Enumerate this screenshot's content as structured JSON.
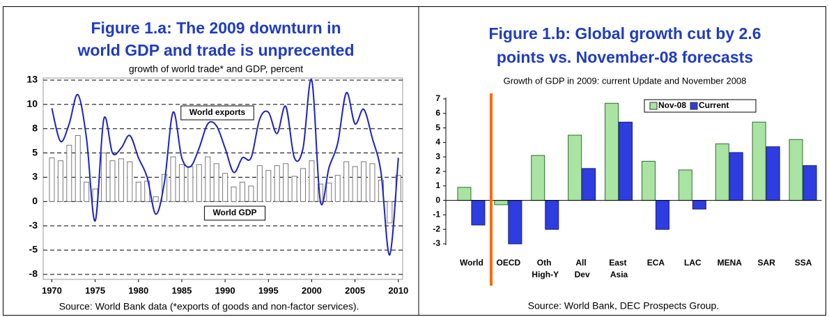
{
  "chart_data": [
    {
      "type": "combo",
      "title": [
        "Figure 1.a: The 2009 downturn in",
        "world GDP and trade is unprecented"
      ],
      "subtitle": "growth of world trade* and GDP, percent",
      "source": "Source: World Bank data (*exports of goods and non-factor services).",
      "x": [
        1970,
        1971,
        1972,
        1973,
        1974,
        1975,
        1976,
        1977,
        1978,
        1979,
        1980,
        1981,
        1982,
        1983,
        1984,
        1985,
        1986,
        1987,
        1988,
        1989,
        1990,
        1991,
        1992,
        1993,
        1994,
        1995,
        1996,
        1997,
        1998,
        1999,
        2000,
        2001,
        2002,
        2003,
        2004,
        2005,
        2006,
        2007,
        2008,
        2009,
        2010
      ],
      "xlim": [
        1969,
        2010.5
      ],
      "xticks": [
        1970,
        1975,
        1980,
        1985,
        1990,
        1995,
        2000,
        2005,
        2010
      ],
      "ylim": [
        -7.8,
        12.5
      ],
      "yticks": [
        {
          "value": 12.5,
          "label": "13"
        },
        10,
        {
          "value": 7.5,
          "label": "8"
        },
        5,
        {
          "value": 2.5,
          "label": "3"
        },
        0,
        {
          "value": -2.5,
          "label": "-3"
        },
        -5,
        {
          "value": -7.5,
          "label": "-8"
        }
      ],
      "grid": true,
      "series": [
        {
          "name": "World GDP",
          "type": "bar",
          "color": "#ffffff",
          "values": [
            4.5,
            4.2,
            5.8,
            6.8,
            2.0,
            1.3,
            5.0,
            4.2,
            4.4,
            4.1,
            2.0,
            2.1,
            0.5,
            2.8,
            4.6,
            3.8,
            3.6,
            3.8,
            4.6,
            3.9,
            2.9,
            1.5,
            2.0,
            1.6,
            3.7,
            3.2,
            3.7,
            3.9,
            2.6,
            3.4,
            4.2,
            1.8,
            1.9,
            2.7,
            4.1,
            3.6,
            4.1,
            3.9,
            2.2,
            -2.2,
            2.7
          ]
        },
        {
          "name": "World exports",
          "type": "line",
          "color": "#1c22c4",
          "values": [
            9.6,
            6.2,
            8.0,
            11.0,
            6.5,
            -2.0,
            8.5,
            5.0,
            5.5,
            6.8,
            4.5,
            2.5,
            -1.3,
            2.0,
            9.2,
            4.5,
            3.6,
            5.5,
            8.0,
            7.8,
            5.5,
            3.0,
            4.5,
            4.5,
            8.5,
            9.2,
            7.0,
            9.8,
            4.5,
            5.5,
            12.5,
            0.0,
            3.5,
            6.0,
            11.2,
            8.0,
            9.5,
            6.5,
            3.0,
            -5.5,
            4.5
          ]
        }
      ]
    },
    {
      "type": "bar",
      "title": [
        "Figure 1.b: Global growth cut by 2.6",
        "points vs. November-08 forecasts"
      ],
      "subtitle": "Growth of GDP in 2009: current Update and November 2008",
      "source": "Source: World Bank, DEC Prospects Group.",
      "categories": [
        "World",
        "OECD",
        "Oth High-Y",
        "All Dev",
        "East Asia",
        "ECA",
        "LAC",
        "MENA",
        "SAR",
        "SSA"
      ],
      "ylim": [
        -3,
        7
      ],
      "yticks": [
        -3,
        -2,
        -1,
        0,
        1,
        2,
        3,
        4,
        5,
        6,
        7
      ],
      "legend": "top",
      "series": [
        {
          "name": "Nov-08",
          "color": "#a9e4a2",
          "values": [
            0.9,
            -0.3,
            3.1,
            4.5,
            6.7,
            2.7,
            2.1,
            3.9,
            5.4,
            4.2
          ]
        },
        {
          "name": "Current",
          "color": "#2e3de0",
          "values": [
            -1.7,
            -3.0,
            -2.0,
            2.2,
            5.4,
            -2.0,
            -0.6,
            3.3,
            3.7,
            2.4
          ]
        }
      ]
    }
  ]
}
